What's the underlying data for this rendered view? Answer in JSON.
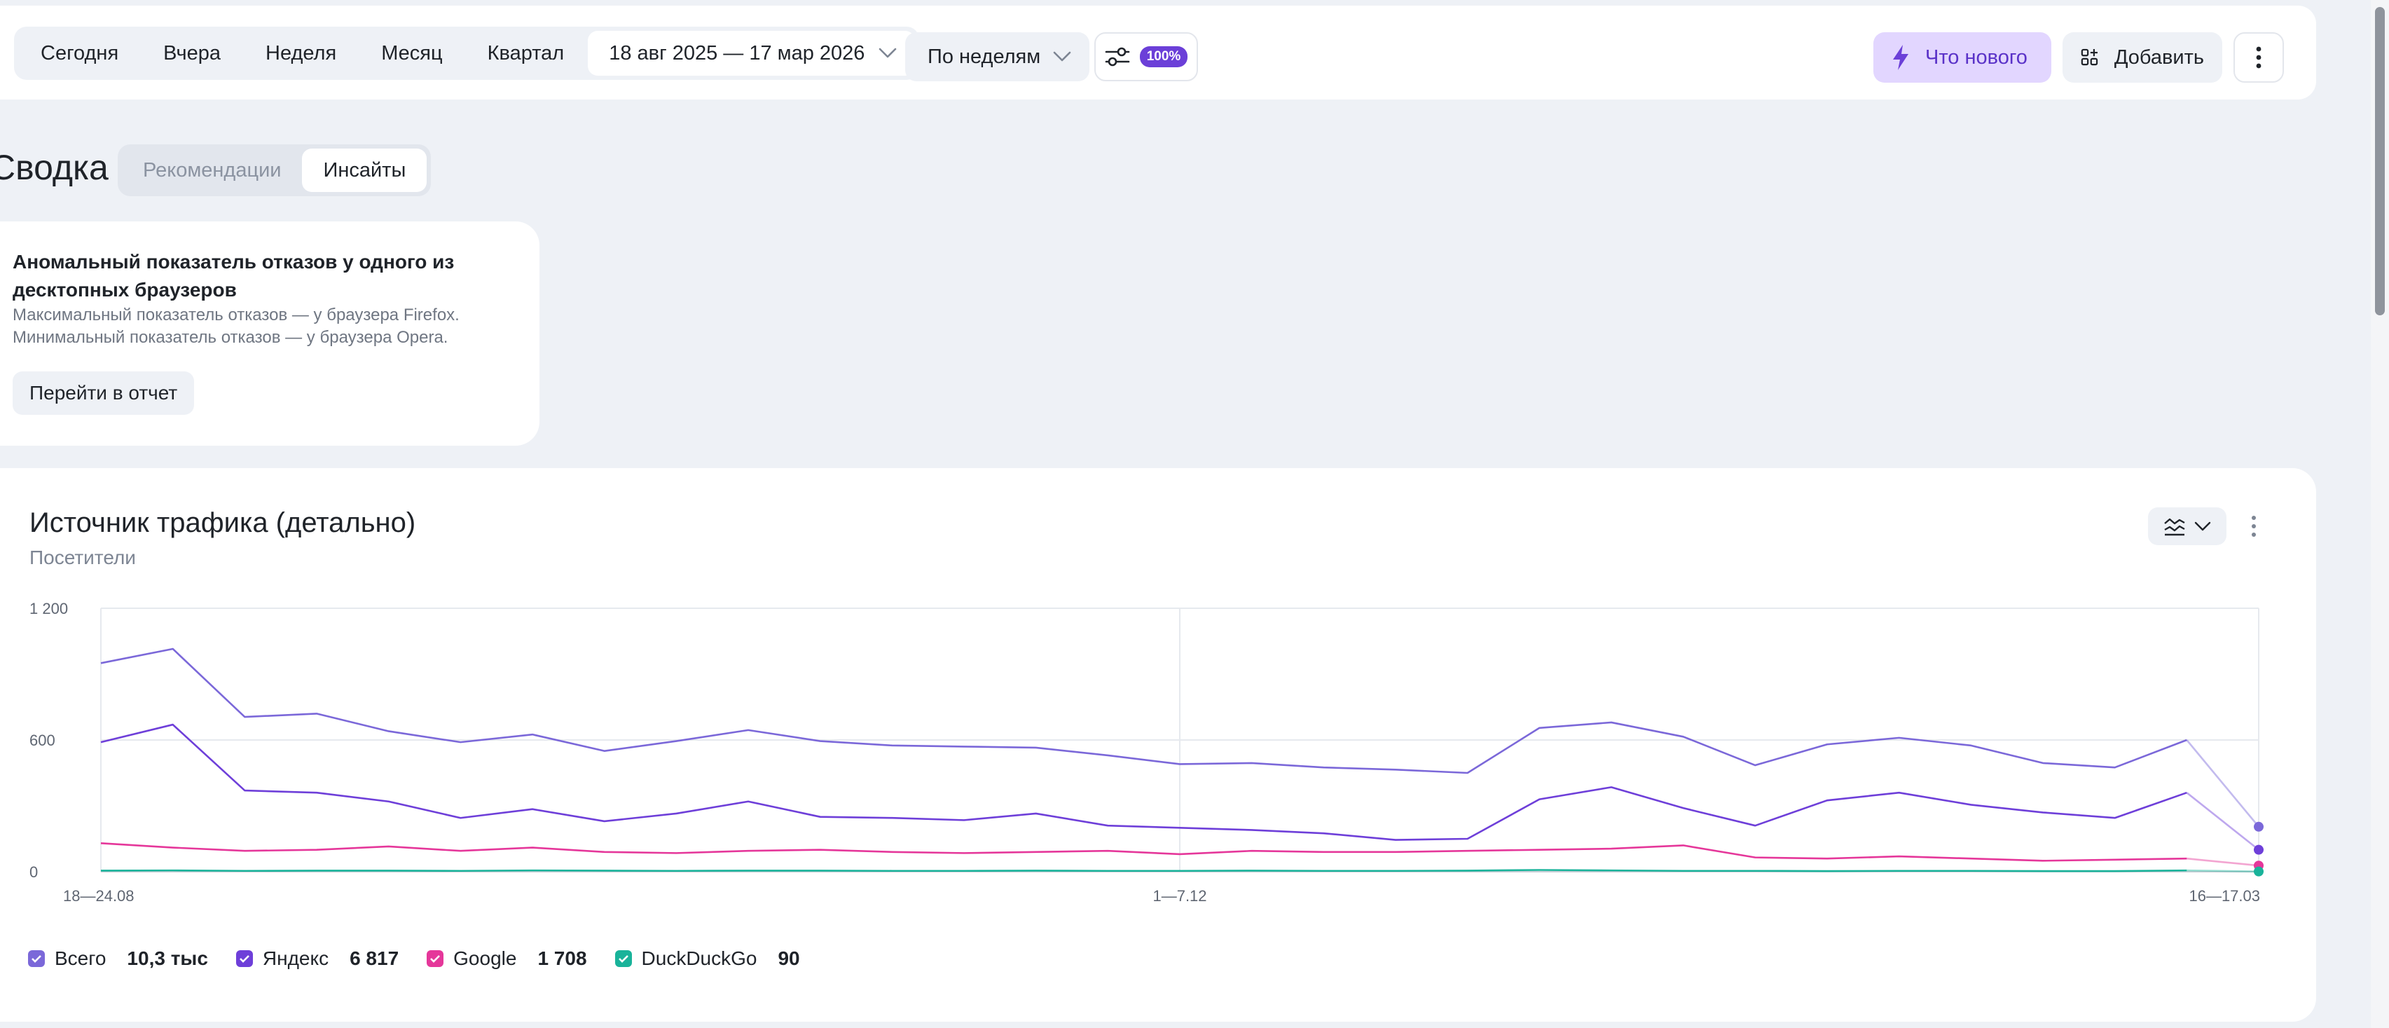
{
  "toolbar": {
    "periods": [
      "Сегодня",
      "Вчера",
      "Неделя",
      "Месяц",
      "Квартал"
    ],
    "date_range": "18 авг 2025 — 17 мар 2026",
    "grouping": "По неделям",
    "sampling_badge": "100%",
    "whats_new": "Что нового",
    "add": "Добавить"
  },
  "summary": {
    "title": "Сводка",
    "tabs": [
      {
        "label": "Рекомендации",
        "active": false
      },
      {
        "label": "Инсайты",
        "active": true
      }
    ]
  },
  "insight": {
    "title": "Аномальный показатель отказов у одного из десктопных браузеров",
    "line1": "Максимальный показатель отказов — у браузера Firefox.",
    "line2": "Минимальный показатель отказов — у браузера Opera.",
    "button": "Перейти в отчет"
  },
  "chart_card": {
    "title": "Источник трафика (детально)",
    "subtitle": "Посетители"
  },
  "chart_data": {
    "type": "line",
    "title": "Источник трафика (детально)",
    "ylabel": "Посетители",
    "ylim": [
      0,
      1200
    ],
    "y_ticks": [
      0,
      600,
      1200
    ],
    "y_tick_labels": [
      "0",
      "600",
      "1 200"
    ],
    "x_tick_labels": [
      {
        "index": 0,
        "label": "18—24.08"
      },
      {
        "index": 15,
        "label": "1—7.12"
      },
      {
        "index": 30,
        "label": "16—17.03"
      }
    ],
    "grid": true,
    "legend_position": "bottom-left",
    "series": [
      {
        "name": "Всего",
        "total": "10,3 тыс",
        "color": "#7b68d9",
        "values": [
          950,
          1015,
          705,
          720,
          640,
          590,
          625,
          550,
          595,
          645,
          595,
          575,
          570,
          565,
          530,
          490,
          495,
          475,
          465,
          450,
          655,
          680,
          615,
          485,
          580,
          610,
          575,
          495,
          475,
          600,
          205
        ]
      },
      {
        "name": "Яндекс",
        "total": "6 817",
        "color": "#6e3fd9",
        "values": [
          590,
          670,
          370,
          360,
          320,
          245,
          285,
          230,
          265,
          320,
          250,
          245,
          235,
          265,
          210,
          200,
          190,
          175,
          145,
          150,
          330,
          385,
          290,
          210,
          325,
          360,
          305,
          270,
          245,
          360,
          100
        ]
      },
      {
        "name": "Google",
        "total": "1 708",
        "color": "#e5379a",
        "values": [
          130,
          110,
          95,
          100,
          115,
          95,
          110,
          90,
          85,
          95,
          100,
          90,
          85,
          90,
          95,
          80,
          95,
          90,
          90,
          95,
          100,
          105,
          120,
          65,
          60,
          70,
          60,
          50,
          55,
          60,
          28
        ]
      },
      {
        "name": "DuckDuckGo",
        "total": "90",
        "color": "#19b39a",
        "values": [
          5,
          6,
          4,
          5,
          5,
          4,
          6,
          5,
          4,
          5,
          5,
          4,
          4,
          5,
          4,
          4,
          5,
          4,
          4,
          5,
          8,
          6,
          4,
          4,
          3,
          4,
          4,
          3,
          3,
          6,
          1
        ]
      }
    ]
  }
}
